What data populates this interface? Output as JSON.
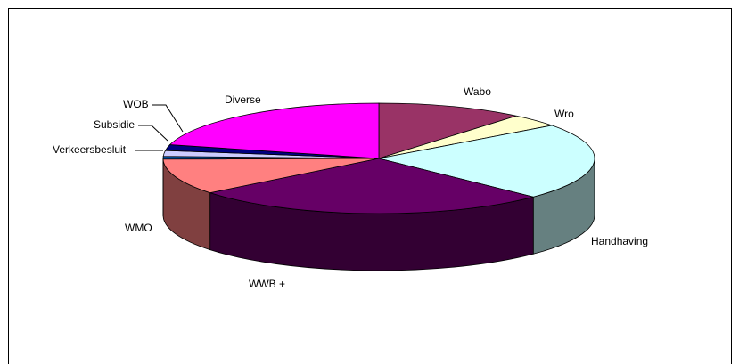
{
  "chart_data": {
    "type": "pie",
    "style": "3d-exploded-none",
    "title": "",
    "slices": [
      {
        "label": "Wabo",
        "value": 11.0,
        "color": "#993366"
      },
      {
        "label": "Wro",
        "value": 3.8,
        "color": "#FFFFCC"
      },
      {
        "label": "Handhaving",
        "value": 22.5,
        "color": "#CCFFFF"
      },
      {
        "label": "WWB +",
        "value": 27.0,
        "color": "#660066"
      },
      {
        "label": "WMO",
        "value": 10.5,
        "color": "#FF8080"
      },
      {
        "label": "Verkeersbesluit",
        "value": 0.8,
        "color": "#0066CC"
      },
      {
        "label": "Subsidie",
        "value": 1.7,
        "color": "#CCCCFF"
      },
      {
        "label": "WOB",
        "value": 1.7,
        "color": "#000080"
      },
      {
        "label": "Diverse",
        "value": 21.0,
        "color": "#FF00FF"
      }
    ],
    "legend": "none"
  }
}
